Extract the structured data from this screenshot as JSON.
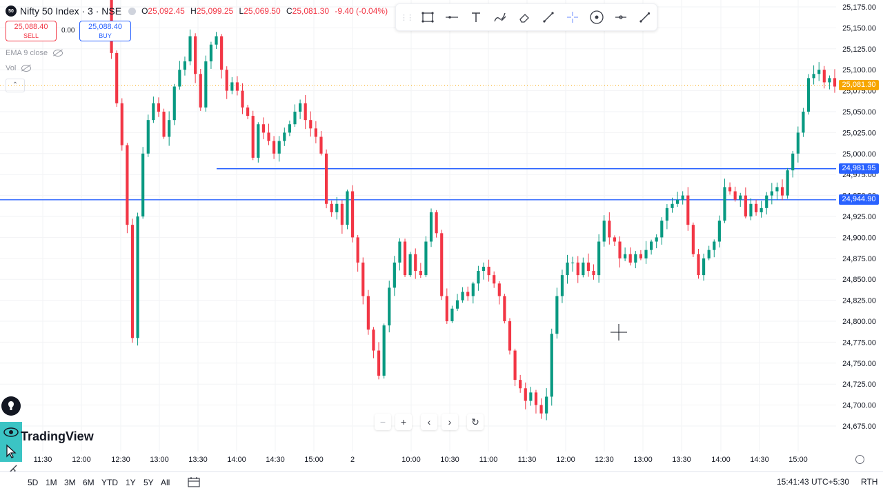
{
  "header": {
    "badge": "50",
    "symbol_title": "Nifty 50 Index · 3 · NSE",
    "open_label": "O",
    "open": "25,092.45",
    "high_label": "H",
    "high": "25,099.25",
    "low_label": "L",
    "low": "25,069.50",
    "close_label": "C",
    "close": "25,081.30",
    "change": "-9.40 (-0.04%)"
  },
  "trade": {
    "sell_price": "25,088.40",
    "sell_label": "SELL",
    "spread": "0.00",
    "buy_price": "25,088.40",
    "buy_label": "BUY"
  },
  "indicators": [
    {
      "label": "EMA 9 close"
    },
    {
      "label": "Vol"
    }
  ],
  "collapse_glyph": "⌃",
  "draw_toolbar": {
    "grip": "⋮⋮",
    "tools": [
      "rectangle-icon",
      "horizontal-line-icon",
      "text-icon",
      "brush-icon",
      "eraser-icon",
      "trend-line-icon",
      "crosshair-icon",
      "measure-icon",
      "horizontal-ray-icon",
      "pen-icon"
    ]
  },
  "price_tags": {
    "last": {
      "text": "25,081.30",
      "color": "#f7a600"
    },
    "line1": {
      "text": "24,981.95",
      "color": "#2962ff"
    },
    "line2": {
      "text": "24,944.90",
      "color": "#2962ff"
    }
  },
  "brand": {
    "logo_text": "TradingView"
  },
  "zoom": {
    "minus": "−",
    "plus": "+",
    "left": "‹",
    "right": "›",
    "reset": "↻"
  },
  "ranges": [
    "5D",
    "1M",
    "3M",
    "6M",
    "YTD",
    "1Y",
    "5Y",
    "All"
  ],
  "status": {
    "time": "15:41:43 UTC+5:30",
    "session": "RTH"
  },
  "colors": {
    "up": "#089981",
    "down": "#f23645",
    "hline": "#2962ff",
    "last": "#f7a600"
  },
  "chart_data": {
    "type": "candlestick",
    "symbol": "Nifty 50 Index",
    "interval": "3",
    "ylim": [
      24662,
      25188
    ],
    "y_ticks": [
      25175,
      25150,
      25125,
      25100,
      25075,
      25050,
      25025,
      25000,
      24975,
      24950,
      24925,
      24900,
      24875,
      24850,
      24825,
      24800,
      24775,
      24750,
      24725,
      24700,
      24675
    ],
    "y_tick_labels": [
      "25,175.00",
      "25,150.00",
      "25,125.00",
      "25,100.00",
      "25,075.00",
      "25,050.00",
      "25,025.00",
      "25,000.00",
      "24,975.00",
      "24,950.00",
      "24,925.00",
      "24,900.00",
      "24,875.00",
      "24,850.00",
      "24,825.00",
      "24,800.00",
      "24,775.00",
      "24,750.00",
      "24,725.00",
      "24,700.00",
      "24,675.00"
    ],
    "x_tick_labels": [
      "11:30",
      "12:00",
      "12:30",
      "13:00",
      "13:30",
      "14:00",
      "14:30",
      "15:00",
      "2",
      "10:00",
      "10:30",
      "11:00",
      "11:30",
      "12:00",
      "12:30",
      "13:00",
      "13:30",
      "14:00",
      "14:30",
      "15:00"
    ],
    "horizontal_lines": [
      24981.95,
      24944.9
    ],
    "last_price": 25081.3,
    "closes": [
      25200,
      25120,
      25060,
      25010,
      24915,
      24780,
      24925,
      25000,
      25040,
      25060,
      25050,
      25020,
      25040,
      25080,
      25100,
      25110,
      25140,
      25095,
      25055,
      25110,
      25130,
      25140,
      25100,
      25075,
      25085,
      25075,
      25055,
      25045,
      24995,
      25035,
      25025,
      25015,
      25000,
      25015,
      25025,
      25035,
      25050,
      25060,
      25040,
      25030,
      25020,
      25000,
      24940,
      24930,
      24940,
      24915,
      24955,
      24900,
      24870,
      24830,
      24790,
      24765,
      24735,
      24795,
      24840,
      24870,
      24895,
      24855,
      24880,
      24860,
      24855,
      24895,
      24930,
      24905,
      24830,
      24800,
      24815,
      24825,
      24835,
      24830,
      24845,
      24860,
      24865,
      24855,
      24845,
      24830,
      24800,
      24765,
      24730,
      24720,
      24705,
      24715,
      24700,
      24690,
      24710,
      24785,
      24830,
      24855,
      24870,
      24870,
      24855,
      24870,
      24860,
      24855,
      24895,
      24920,
      24900,
      24895,
      24875,
      24880,
      24870,
      24880,
      24875,
      24885,
      24895,
      24900,
      24920,
      24935,
      24940,
      24945,
      24950,
      24915,
      24880,
      24855,
      24875,
      24885,
      24895,
      24920,
      24960,
      24955,
      24945,
      24950,
      24925,
      24940,
      24930,
      24935,
      24950,
      24955,
      24960,
      24950,
      24980,
      25000,
      25025,
      25050,
      25090,
      25095,
      25100,
      25085,
      25090,
      25080
    ]
  }
}
